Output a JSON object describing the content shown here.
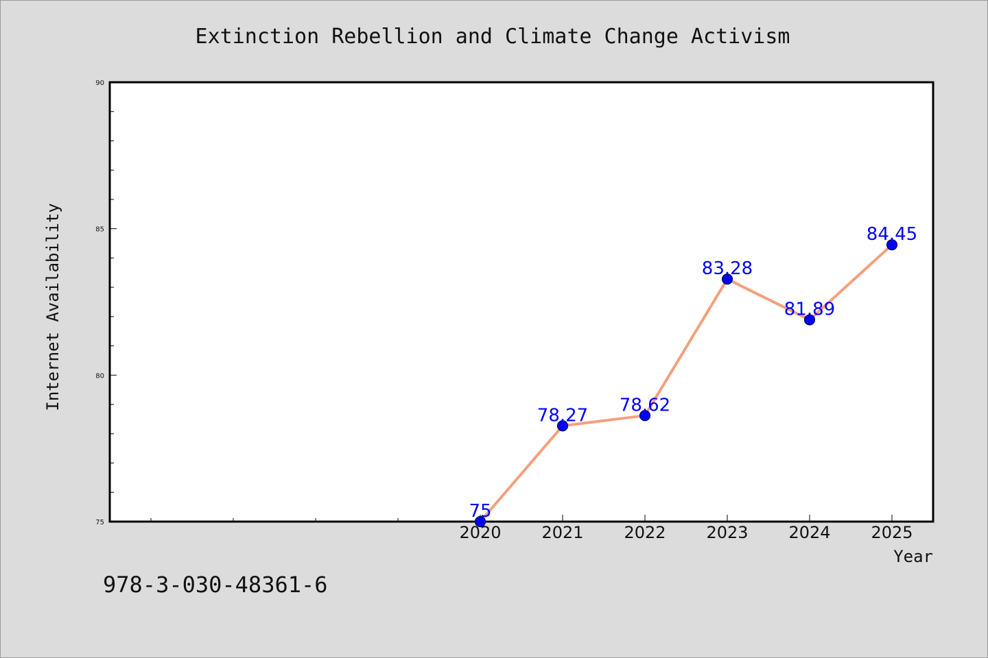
{
  "chart_data": {
    "type": "line",
    "title": "Extinction Rebellion and Climate Change Activism",
    "xlabel": "Year",
    "ylabel": "Internet Availability",
    "x": [
      2020,
      2021,
      2022,
      2023,
      2024,
      2025
    ],
    "x_tick_labels": [
      "2020",
      "2021",
      "2022",
      "2023",
      "2024",
      "2025"
    ],
    "xlim": [
      2015.5,
      2025.5
    ],
    "ylim": [
      75,
      90
    ],
    "y_major_ticks": [
      75,
      80,
      85,
      90
    ],
    "y_tick_labels": [
      "75",
      "80",
      "85",
      "90"
    ],
    "series": [
      {
        "values": [
          75,
          78.27,
          78.62,
          83.28,
          81.89,
          84.45
        ],
        "data_labels": [
          "75",
          "78.27",
          "78.62",
          "83.28",
          "81.89",
          "84.45"
        ],
        "line_color": "#f4a07c",
        "marker_color": "#0000ff"
      }
    ],
    "grid": false,
    "background_color": "#dcdcdc",
    "plot_background_color": "#ffffff"
  },
  "footnote": "978-3-030-48361-6"
}
